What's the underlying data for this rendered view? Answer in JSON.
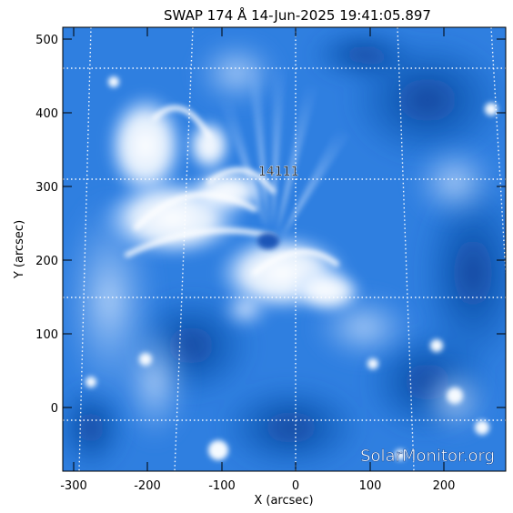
{
  "title": "SWAP 174 Å 14-Jun-2025 19:41:05.897",
  "xlabel": "X (arcsec)",
  "ylabel": "Y (arcsec)",
  "xticks": [
    "-300",
    "-200",
    "-100",
    "0",
    "100",
    "200"
  ],
  "yticks": [
    "0",
    "100",
    "200",
    "300",
    "400",
    "500"
  ],
  "region_label": "14111",
  "watermark": "SolarMonitor.org",
  "colors": {
    "background": "#ffffff",
    "image_dark": "#0b4fb0",
    "image_mid": "#3f8ee8",
    "image_bright": "#ffffff",
    "grid": "#ffffff"
  }
}
